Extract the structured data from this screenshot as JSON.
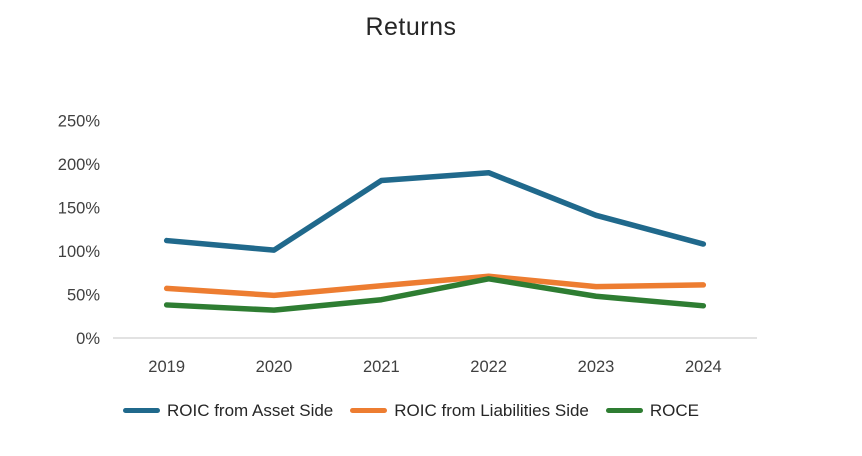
{
  "chart_data": {
    "type": "line",
    "title": "Returns",
    "categories": [
      "2019",
      "2020",
      "2021",
      "2022",
      "2023",
      "2024"
    ],
    "series": [
      {
        "name": "ROIC from Asset Side",
        "color": "#20698C",
        "values": [
          112,
          101,
          181,
          190,
          141,
          108
        ]
      },
      {
        "name": "ROIC from Liabilities Side",
        "color": "#ED7D31",
        "values": [
          57,
          49,
          60,
          71,
          59,
          61
        ]
      },
      {
        "name": "ROCE",
        "color": "#2E7D32",
        "values": [
          38,
          32,
          44,
          68,
          48,
          37
        ]
      }
    ],
    "xlabel": "",
    "ylabel": "",
    "ylim": [
      0,
      250
    ],
    "y_tick_step": 50,
    "y_tick_labels": [
      "0%",
      "50%",
      "100%",
      "150%",
      "200%",
      "250%"
    ],
    "grid": false,
    "legend_position": "bottom",
    "colors": {
      "axis_line": "#D9D9D9",
      "tick_label": "#404040",
      "title": "#262626",
      "legend_label": "#262626",
      "background": "#FFFFFF"
    }
  }
}
